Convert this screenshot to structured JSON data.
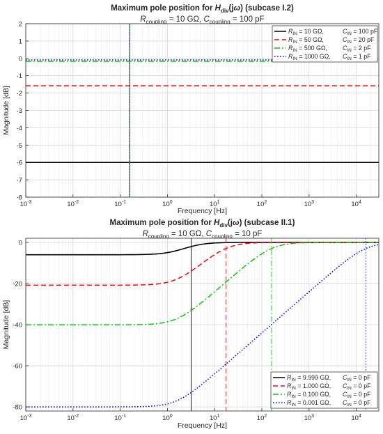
{
  "chart_data": [
    {
      "type": "line",
      "title": "Maximum pole position for H_div(jω) (subcase I.2)",
      "title_parts": [
        "Maximum pole position for ",
        "H",
        "div",
        "(j",
        "ω",
        ") (subcase I.2)"
      ],
      "subtitle": "R_coupling = 10 GΩ, C_coupling = 100 pF",
      "subtitle_parts": [
        "R",
        "coupling",
        " = 10 GΩ, ",
        "C",
        "coupling",
        " = 100 pF"
      ],
      "xlabel": "Frequency [Hz]",
      "ylabel": "Magnitude [dB]",
      "xscale": "log",
      "xlim": [
        0.001,
        30000
      ],
      "ylim": [
        -8,
        2
      ],
      "yticks": [
        -8,
        -7,
        -6,
        -5,
        -4,
        -3,
        -2,
        -1,
        0,
        1,
        2
      ],
      "xtick_exponents": [
        -3,
        -2,
        -1,
        0,
        1,
        2,
        3,
        4
      ],
      "grid": true,
      "legend_position": "top-right",
      "series": [
        {
          "name": "R_IN = 10 GΩ, C_IN = 100 pF",
          "label_parts": [
            "R",
            "IN",
            " = 10 GΩ,",
            "C",
            "IN",
            " = 100  pF"
          ],
          "color": "#000000",
          "dash": "solid",
          "kind": "const",
          "value": -6.0,
          "corner_hz": 0.159
        },
        {
          "name": "R_IN = 50 GΩ, C_IN = 20 pF",
          "label_parts": [
            "R",
            "IN",
            " = 50 GΩ,",
            "C",
            "IN",
            " = 20  pF"
          ],
          "color": "#ff0000",
          "dash": "dashed",
          "kind": "const",
          "value": -1.58,
          "corner_hz": 0.159
        },
        {
          "name": "R_IN = 500 GΩ, C_IN = 2 pF",
          "label_parts": [
            "R",
            "IN",
            " = 500 GΩ,",
            "C",
            "IN",
            " = 2  pF"
          ],
          "color": "#00cc00",
          "dash": "dashdot",
          "kind": "const",
          "value": -0.17,
          "corner_hz": 0.159
        },
        {
          "name": "R_IN = 1000 GΩ, C_IN = 1 pF",
          "label_parts": [
            "R",
            "IN",
            " = 1000 GΩ,",
            "C",
            "IN",
            " = 1  pF"
          ],
          "color": "#0000ff",
          "dash": "dotted",
          "kind": "const",
          "value": -0.09,
          "corner_hz": 0.159
        }
      ]
    },
    {
      "type": "line",
      "title": "Maximum pole position for H_div(jω) (subcase II.1)",
      "title_parts": [
        "Maximum pole position for ",
        "H",
        "div",
        "(j",
        "ω",
        ") (subcase II.1)"
      ],
      "subtitle": "R_coupling = 10 GΩ, C_coupling = 10 pF",
      "subtitle_parts": [
        "R",
        "coupling",
        " = 10 GΩ, ",
        "C",
        "coupling",
        " = 10 pF"
      ],
      "xlabel": "Frequency [Hz]",
      "ylabel": "Magnitude [dB]",
      "xscale": "log",
      "xlim": [
        0.001,
        30000
      ],
      "ylim": [
        -82,
        2
      ],
      "yticks": [
        -80,
        -60,
        -40,
        -20,
        0
      ],
      "xtick_exponents": [
        -3,
        -2,
        -1,
        0,
        1,
        2,
        3,
        4
      ],
      "grid": true,
      "legend_position": "bottom-right",
      "series": [
        {
          "name": "R_IN = 9.999 GΩ, C_IN = 0 pF",
          "label_parts": [
            "R",
            "IN",
            " = 9.999 GΩ, ",
            "C",
            "IN",
            " = 0  pF"
          ],
          "color": "#000000",
          "dash": "solid",
          "kind": "shelf",
          "low_db": -6.02,
          "zero_hz": 1.59,
          "pole_hz": 3.18
        },
        {
          "name": "R_IN = 1.000 GΩ, C_IN = 0 pF",
          "label_parts": [
            "R",
            "IN",
            " = 1.000 GΩ, ",
            "C",
            "IN",
            " = 0  pF"
          ],
          "color": "#ff0000",
          "dash": "dashed",
          "kind": "shelf",
          "low_db": -20.83,
          "zero_hz": 1.59,
          "pole_hz": 17.5
        },
        {
          "name": "R_IN = 0.100 GΩ, C_IN = 0 pF",
          "label_parts": [
            "R",
            "IN",
            " = 0.100 GΩ, ",
            "C",
            "IN",
            " = 0  pF"
          ],
          "color": "#00cc00",
          "dash": "dashdot",
          "kind": "shelf",
          "low_db": -40.09,
          "zero_hz": 1.59,
          "pole_hz": 160.7
        },
        {
          "name": "R_IN = 0.001 GΩ, C_IN = 0 pF",
          "label_parts": [
            "R",
            "IN",
            " = 0.001 GΩ, ",
            "C",
            "IN",
            " = 0  pF"
          ],
          "color": "#0000ff",
          "dash": "dotted",
          "kind": "shelf",
          "low_db": -80.0,
          "zero_hz": 1.59,
          "pole_hz": 15917
        }
      ]
    }
  ]
}
